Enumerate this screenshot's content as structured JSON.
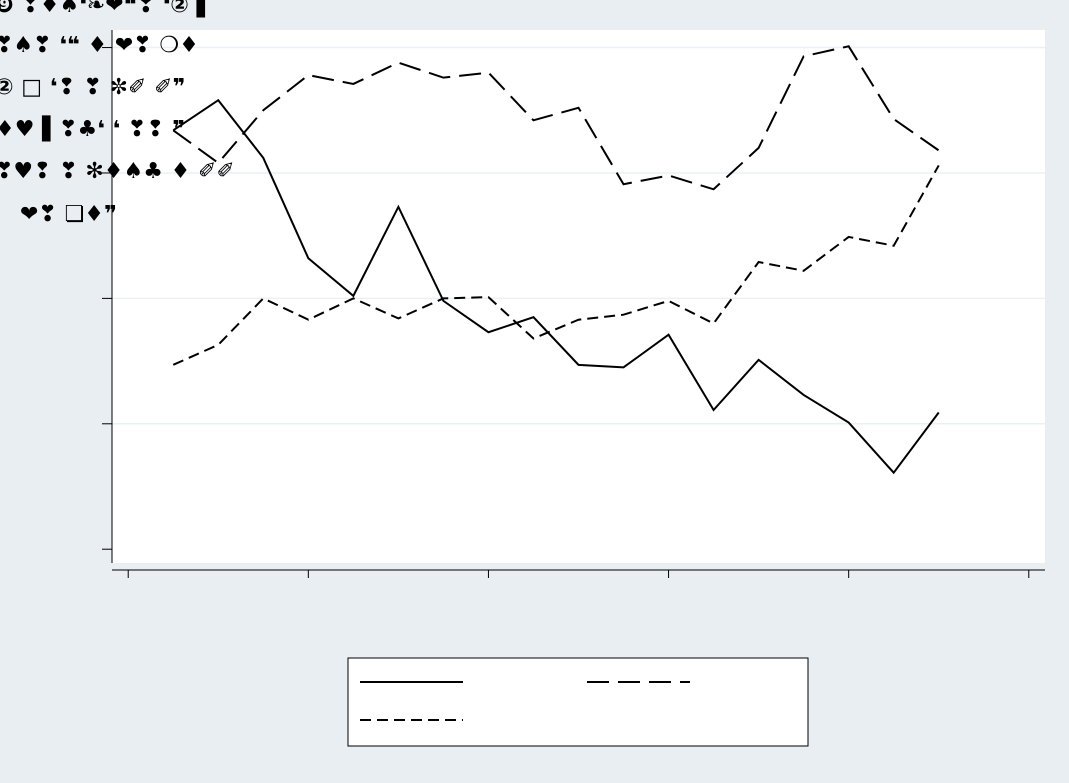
{
  "chart_data": {
    "type": "line",
    "annotations": [
      "❾ ❢♦♠❛❧❤❝❣ ❛② ▌",
      "❣♠❣ ❛❝ ♦ ❤❣ ❍♦",
      "② □ ❛❢ ❣ ✼✐ ✐❞",
      "♦♥ ▌❣♣❛ ❛ ❣❢ ❞",
      "❣♥❢ ❣ ✻♦♠♣ ♦ ✐✐",
      "❤❣ ❏♦❞"
    ],
    "x": [
      0.25,
      0.5,
      0.75,
      1,
      1.25,
      1.5,
      1.75,
      2,
      2.25,
      2.5,
      2.75,
      3,
      3.25,
      3.5,
      3.75,
      4,
      4.25,
      4.5
    ],
    "series": [
      {
        "color": "#000000",
        "dash": "none",
        "values": [
          3.34,
          3.58,
          3.12,
          2.32,
          2.02,
          2.73,
          1.98,
          1.73,
          1.85,
          1.47,
          1.45,
          1.71,
          1.11,
          1.51,
          1.23,
          1.01,
          0.61,
          1.09
        ]
      },
      {
        "color": "#000000",
        "dash": "22 9",
        "values": [
          3.34,
          3.08,
          3.5,
          3.78,
          3.71,
          3.88,
          3.76,
          3.8,
          3.42,
          3.52,
          2.91,
          2.98,
          2.87,
          3.2,
          3.93,
          4.01,
          3.43,
          3.18
        ]
      },
      {
        "color": "#000000",
        "dash": "11 6",
        "values": [
          1.47,
          1.63,
          2.0,
          1.83,
          2.0,
          1.84,
          2.0,
          2.01,
          1.68,
          1.83,
          1.87,
          1.98,
          1.8,
          2.29,
          2.22,
          2.49,
          2.42,
          3.06
        ]
      }
    ],
    "xlim": [
      -0.09,
      5.09
    ],
    "xticks": [
      0,
      1,
      2,
      3,
      4,
      5
    ],
    "ylim": [
      -0.11,
      4.14
    ],
    "yticks": [
      0,
      1,
      2,
      3,
      4
    ],
    "grid": true
  }
}
